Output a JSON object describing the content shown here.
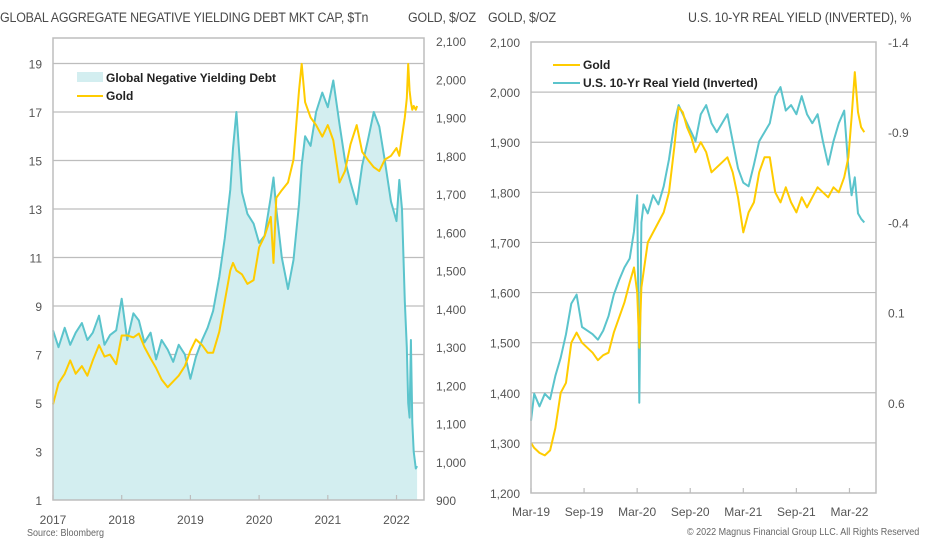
{
  "footer": {
    "source": "Source: Bloomberg",
    "copyright": "© 2022 Magnus Financial Group LLC. All Rights Reserved"
  },
  "colors": {
    "teal": "#5bc4cc",
    "teal_fill": "#d3eef0",
    "gold": "#ffcc00",
    "grid": "#bdbdbd"
  },
  "chart_data": [
    {
      "type": "area",
      "title": "GLOBAL AGGREGATE NEGATIVE YIELDING DEBT MKT CAP, $Tn",
      "ylabel": "GLOBAL AGGREGATE NEGATIVE YIELDING DEBT MKT CAP, $Tn",
      "y2label": "GOLD, $/OZ",
      "xlabel": "",
      "x_ticks": [
        "2017",
        "2018",
        "2019",
        "2020",
        "2021",
        "2022"
      ],
      "xlim": [
        2017.0,
        2022.4
      ],
      "y_ticks": [
        1,
        3,
        5,
        7,
        9,
        11,
        13,
        15,
        17,
        19
      ],
      "ylim": [
        1,
        20
      ],
      "y2_ticks": [
        "900",
        "1,000",
        "1,100",
        "1,200",
        "1,300",
        "1,400",
        "1,500",
        "1,600",
        "1,700",
        "1,800",
        "1,900",
        "2,000",
        "2,100"
      ],
      "y2lim": [
        900,
        2100
      ],
      "grid": true,
      "legend": {
        "position": "top-left",
        "entries": [
          "Global Negative Yielding Debt",
          "Gold"
        ]
      },
      "x": [
        2017.0,
        2017.08,
        2017.17,
        2017.25,
        2017.33,
        2017.42,
        2017.5,
        2017.58,
        2017.67,
        2017.75,
        2017.83,
        2017.92,
        2018.0,
        2018.08,
        2018.17,
        2018.25,
        2018.33,
        2018.42,
        2018.5,
        2018.58,
        2018.67,
        2018.75,
        2018.83,
        2018.92,
        2019.0,
        2019.08,
        2019.17,
        2019.25,
        2019.33,
        2019.42,
        2019.5,
        2019.58,
        2019.62,
        2019.67,
        2019.75,
        2019.83,
        2019.92,
        2020.0,
        2020.08,
        2020.17,
        2020.21,
        2020.25,
        2020.33,
        2020.42,
        2020.5,
        2020.58,
        2020.62,
        2020.67,
        2020.75,
        2020.83,
        2020.92,
        2021.0,
        2021.08,
        2021.17,
        2021.25,
        2021.33,
        2021.42,
        2021.5,
        2021.58,
        2021.67,
        2021.75,
        2021.83,
        2021.92,
        2022.0,
        2022.04,
        2022.08,
        2022.12,
        2022.15,
        2022.17,
        2022.19,
        2022.21,
        2022.23,
        2022.25,
        2022.28,
        2022.3
      ],
      "series": [
        {
          "name": "Global Negative Yielding Debt",
          "values": [
            8.0,
            7.3,
            8.1,
            7.4,
            7.9,
            8.3,
            7.6,
            7.9,
            8.6,
            7.4,
            7.8,
            8.0,
            9.3,
            7.6,
            8.7,
            8.4,
            7.5,
            7.9,
            6.8,
            7.6,
            7.2,
            6.7,
            7.4,
            7.0,
            6.0,
            6.9,
            7.6,
            8.1,
            8.8,
            10.2,
            11.8,
            13.8,
            15.5,
            17.0,
            13.7,
            12.8,
            12.4,
            11.6,
            11.9,
            13.5,
            14.3,
            13.0,
            11.0,
            9.7,
            10.9,
            13.2,
            14.8,
            16.0,
            15.6,
            17.0,
            17.8,
            17.2,
            18.3,
            16.5,
            15.0,
            14.1,
            13.2,
            14.8,
            15.8,
            17.0,
            16.4,
            15.0,
            13.3,
            12.5,
            14.2,
            13.0,
            9.2,
            7.3,
            5.0,
            4.4,
            7.6,
            4.2,
            3.0,
            2.3,
            2.4
          ]
        },
        {
          "name": "Gold",
          "values": [
            1150,
            1205,
            1230,
            1265,
            1230,
            1250,
            1225,
            1265,
            1305,
            1275,
            1280,
            1255,
            1330,
            1330,
            1325,
            1335,
            1300,
            1270,
            1245,
            1215,
            1195,
            1210,
            1225,
            1250,
            1290,
            1320,
            1305,
            1285,
            1285,
            1340,
            1420,
            1500,
            1520,
            1500,
            1490,
            1465,
            1475,
            1560,
            1590,
            1640,
            1520,
            1690,
            1710,
            1730,
            1790,
            1970,
            2040,
            1940,
            1900,
            1880,
            1850,
            1880,
            1840,
            1730,
            1760,
            1830,
            1880,
            1810,
            1790,
            1770,
            1760,
            1790,
            1800,
            1820,
            1800,
            1850,
            1900,
            1950,
            2040,
            1970,
            1940,
            1920,
            1930,
            1920,
            1930
          ]
        }
      ]
    },
    {
      "type": "line",
      "title": "U.S. 10-YR REAL YIELD (INVERTED), %",
      "ylabel": "GOLD, $/OZ",
      "y2label": "U.S. 10-YR REAL YIELD (INVERTED), %",
      "xlabel": "",
      "x_ticks": [
        "Mar-19",
        "Sep-19",
        "Mar-20",
        "Sep-20",
        "Mar-21",
        "Sep-21",
        "Mar-22"
      ],
      "xlim": [
        2019.17,
        2022.42
      ],
      "y_ticks": [
        "1,200",
        "1,300",
        "1,400",
        "1,500",
        "1,600",
        "1,700",
        "1,800",
        "1,900",
        "2,000",
        "2,100"
      ],
      "ylim": [
        1200,
        2100
      ],
      "y2_ticks": [
        "-1.4",
        "-0.9",
        "-0.4",
        "0.1",
        "0.6"
      ],
      "y2lim": [
        -1.4,
        1.1
      ],
      "y2_inverted": true,
      "grid": true,
      "legend": {
        "position": "top-left",
        "entries": [
          "Gold",
          "U.S. 10-Yr Real Yield (Inverted)"
        ]
      },
      "x": [
        2019.17,
        2019.2,
        2019.25,
        2019.3,
        2019.35,
        2019.4,
        2019.45,
        2019.5,
        2019.55,
        2019.6,
        2019.65,
        2019.7,
        2019.75,
        2019.8,
        2019.85,
        2019.9,
        2019.95,
        2020.0,
        2020.05,
        2020.1,
        2020.14,
        2020.17,
        2020.19,
        2020.21,
        2020.23,
        2020.27,
        2020.32,
        2020.37,
        2020.42,
        2020.47,
        2020.52,
        2020.56,
        2020.6,
        2020.64,
        2020.68,
        2020.72,
        2020.77,
        2020.82,
        2020.87,
        2020.92,
        2020.97,
        2021.02,
        2021.07,
        2021.12,
        2021.17,
        2021.22,
        2021.27,
        2021.32,
        2021.37,
        2021.42,
        2021.47,
        2021.52,
        2021.57,
        2021.62,
        2021.67,
        2021.72,
        2021.77,
        2021.82,
        2021.87,
        2021.92,
        2021.97,
        2022.02,
        2022.07,
        2022.12,
        2022.16,
        2022.19,
        2022.22,
        2022.25,
        2022.28,
        2022.31
      ],
      "series": [
        {
          "name": "Gold",
          "values": [
            1300,
            1290,
            1280,
            1275,
            1285,
            1330,
            1400,
            1420,
            1500,
            1520,
            1500,
            1490,
            1480,
            1465,
            1475,
            1480,
            1520,
            1550,
            1580,
            1620,
            1650,
            1600,
            1490,
            1610,
            1640,
            1700,
            1720,
            1740,
            1760,
            1800,
            1890,
            1970,
            1960,
            1930,
            1910,
            1880,
            1900,
            1880,
            1840,
            1850,
            1860,
            1870,
            1840,
            1790,
            1720,
            1760,
            1780,
            1840,
            1870,
            1870,
            1800,
            1780,
            1810,
            1780,
            1760,
            1790,
            1770,
            1790,
            1810,
            1800,
            1790,
            1810,
            1800,
            1830,
            1870,
            1950,
            2040,
            1960,
            1930,
            1920
          ]
        },
        {
          "name": "U.S. 10-Yr Real Yield (Inverted)",
          "values": [
            0.7,
            0.55,
            0.62,
            0.55,
            0.58,
            0.45,
            0.35,
            0.22,
            0.05,
            0.0,
            0.18,
            0.2,
            0.22,
            0.25,
            0.2,
            0.12,
            0.0,
            -0.08,
            -0.15,
            -0.2,
            -0.35,
            -0.55,
            0.6,
            -0.4,
            -0.5,
            -0.45,
            -0.55,
            -0.5,
            -0.6,
            -0.75,
            -0.95,
            -1.05,
            -1.0,
            -0.95,
            -0.9,
            -0.85,
            -1.0,
            -1.05,
            -0.95,
            -0.9,
            -0.95,
            -1.0,
            -0.85,
            -0.7,
            -0.62,
            -0.6,
            -0.72,
            -0.85,
            -0.9,
            -0.95,
            -1.1,
            -1.15,
            -1.02,
            -1.05,
            -1.0,
            -1.1,
            -1.0,
            -0.95,
            -1.0,
            -0.85,
            -0.72,
            -0.85,
            -0.95,
            -1.02,
            -0.7,
            -0.55,
            -0.65,
            -0.45,
            -0.42,
            -0.4
          ]
        }
      ]
    }
  ]
}
